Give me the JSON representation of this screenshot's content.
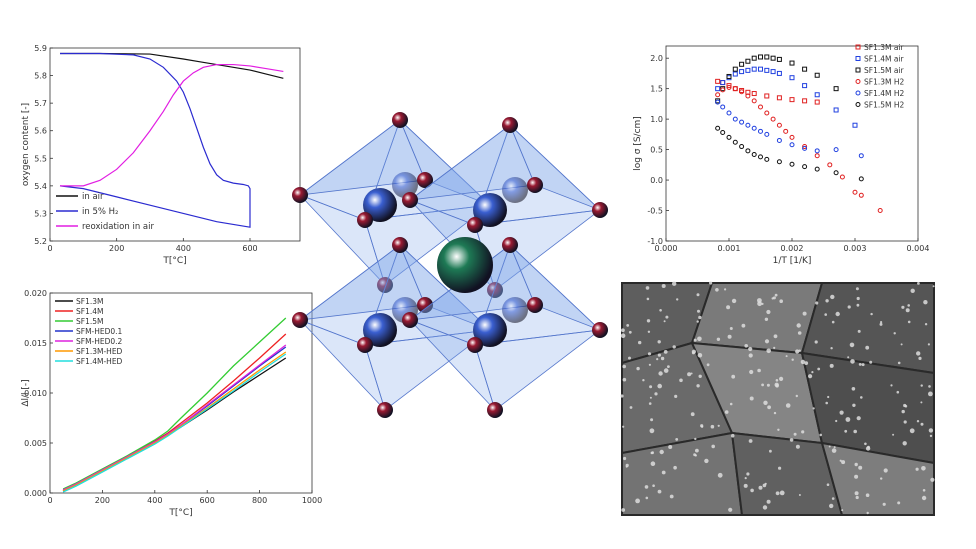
{
  "colors": {
    "axis": "#333333",
    "tick_text": "#333333"
  },
  "panel_oxygen": {
    "chart_data": {
      "type": "line",
      "ylabel": "oxygen content [-]",
      "xlabel": "T[°C]",
      "xlim": [
        0,
        750
      ],
      "ylim": [
        5.2,
        5.9
      ],
      "xticks": [
        0,
        200,
        400,
        600
      ],
      "yticks": [
        5.2,
        5.3,
        5.4,
        5.5,
        5.6,
        5.7,
        5.8,
        5.9
      ],
      "grid": false,
      "legend_position": "bottom-left",
      "series": [
        {
          "name": "in air",
          "color": "#111111",
          "x": [
            30,
            150,
            300,
            400,
            450,
            500,
            550,
            600,
            650,
            700
          ],
          "y": [
            5.88,
            5.88,
            5.878,
            5.86,
            5.85,
            5.84,
            5.83,
            5.82,
            5.805,
            5.79
          ]
        },
        {
          "name": "in 5% H₂",
          "color": "#2b2bd0",
          "x": [
            30,
            150,
            250,
            300,
            340,
            380,
            400,
            420,
            440,
            460,
            480,
            500,
            520,
            550,
            580,
            595,
            600,
            600,
            500,
            400,
            300,
            200,
            100,
            30
          ],
          "y": [
            5.88,
            5.88,
            5.875,
            5.86,
            5.83,
            5.78,
            5.74,
            5.68,
            5.61,
            5.54,
            5.48,
            5.44,
            5.42,
            5.41,
            5.405,
            5.4,
            5.39,
            5.25,
            5.27,
            5.3,
            5.33,
            5.36,
            5.39,
            5.4
          ]
        },
        {
          "name": "reoxidation in air",
          "color": "#e21ee2",
          "x": [
            30,
            100,
            150,
            200,
            250,
            300,
            340,
            370,
            400,
            430,
            460,
            500,
            550,
            600,
            650,
            700
          ],
          "y": [
            5.4,
            5.4,
            5.42,
            5.46,
            5.52,
            5.6,
            5.67,
            5.73,
            5.78,
            5.81,
            5.83,
            5.84,
            5.84,
            5.835,
            5.825,
            5.815
          ]
        }
      ]
    }
  },
  "panel_expansion": {
    "chart_data": {
      "type": "line",
      "ylabel": "Δl/l [-]",
      "xlabel": "T[°C]",
      "xlim": [
        0,
        1000
      ],
      "ylim": [
        0,
        0.02
      ],
      "xticks": [
        0,
        200,
        400,
        600,
        800,
        1000
      ],
      "yticks": [
        "0.000",
        "0.005",
        "0.010",
        "0.015",
        "0.020"
      ],
      "grid": false,
      "legend_position": "top-left",
      "x": [
        50,
        100,
        200,
        300,
        400,
        450,
        500,
        600,
        700,
        800,
        900
      ],
      "series": [
        {
          "name": "SF1.3M",
          "color": "#111111",
          "values": [
            0.0002,
            0.0008,
            0.0022,
            0.0036,
            0.005,
            0.0058,
            0.0066,
            0.0083,
            0.0101,
            0.0118,
            0.0135
          ]
        },
        {
          "name": "SF1.4M",
          "color": "#ee2222",
          "values": [
            0.0003,
            0.0009,
            0.0023,
            0.0037,
            0.0052,
            0.006,
            0.007,
            0.009,
            0.0112,
            0.0135,
            0.0159
          ]
        },
        {
          "name": "SF1.5M",
          "color": "#33cc33",
          "values": [
            0.0004,
            0.001,
            0.0024,
            0.0038,
            0.0053,
            0.0062,
            0.0075,
            0.01,
            0.0127,
            0.0151,
            0.0175
          ]
        },
        {
          "name": "SFM-HED0.1",
          "color": "#2233cc",
          "values": [
            0.0002,
            0.0008,
            0.0022,
            0.0036,
            0.0051,
            0.0059,
            0.0068,
            0.0087,
            0.0107,
            0.0127,
            0.0146
          ]
        },
        {
          "name": "SFM-HED0.2",
          "color": "#dd22dd",
          "values": [
            0.0003,
            0.0009,
            0.0023,
            0.0037,
            0.0051,
            0.0059,
            0.0068,
            0.0088,
            0.0108,
            0.0128,
            0.0148
          ]
        },
        {
          "name": "SF1.3M-HED",
          "color": "#ff9900",
          "values": [
            0.0002,
            0.0008,
            0.0022,
            0.0036,
            0.005,
            0.0058,
            0.0067,
            0.0085,
            0.0104,
            0.0123,
            0.0141
          ]
        },
        {
          "name": "SF1.4M-HED",
          "color": "#22dddd",
          "values": [
            0.0001,
            0.0007,
            0.0021,
            0.0035,
            0.0049,
            0.0057,
            0.0066,
            0.0084,
            0.0102,
            0.0121,
            0.0139
          ]
        }
      ]
    }
  },
  "panel_conductivity": {
    "chart_data": {
      "type": "scatter",
      "ylabel": "log σ [S/cm]",
      "xlabel": "1/T [1/K]",
      "xlim": [
        0,
        0.004
      ],
      "ylim": [
        -1.0,
        2.2
      ],
      "xticks": [
        "0.000",
        "0.001",
        "0.002",
        "0.003",
        "0.004"
      ],
      "yticks": [
        "-1.0",
        "-0.5",
        "0.0",
        "0.5",
        "1.0",
        "1.5",
        "2.0"
      ],
      "grid": false,
      "legend_position": "top-right",
      "series": [
        {
          "name": "SF1.3M air",
          "color": "#e02020",
          "marker": "square",
          "x": [
            0.00082,
            0.0009,
            0.001,
            0.0011,
            0.0012,
            0.0013,
            0.0014,
            0.0016,
            0.0018,
            0.002,
            0.0022,
            0.0024
          ],
          "y": [
            1.62,
            1.6,
            1.55,
            1.5,
            1.47,
            1.44,
            1.42,
            1.38,
            1.35,
            1.32,
            1.3,
            1.28
          ]
        },
        {
          "name": "SF1.4M air",
          "color": "#2040e0",
          "marker": "square",
          "x": [
            0.00082,
            0.0009,
            0.001,
            0.0011,
            0.0012,
            0.0013,
            0.0014,
            0.0015,
            0.0016,
            0.0017,
            0.0018,
            0.002,
            0.0022,
            0.0024,
            0.0027,
            0.003
          ],
          "y": [
            1.5,
            1.6,
            1.68,
            1.74,
            1.78,
            1.8,
            1.82,
            1.82,
            1.8,
            1.78,
            1.75,
            1.68,
            1.55,
            1.4,
            1.15,
            0.9
          ]
        },
        {
          "name": "SF1.5M air",
          "color": "#111111",
          "marker": "square",
          "x": [
            0.00082,
            0.0009,
            0.001,
            0.0011,
            0.0012,
            0.0013,
            0.0014,
            0.0015,
            0.0016,
            0.0017,
            0.0018,
            0.002,
            0.0022,
            0.0024,
            0.0027
          ],
          "y": [
            1.3,
            1.5,
            1.7,
            1.82,
            1.9,
            1.95,
            2.0,
            2.02,
            2.02,
            2.0,
            1.98,
            1.92,
            1.82,
            1.72,
            1.5
          ]
        },
        {
          "name": "SF1.3M H2",
          "color": "#e02020",
          "marker": "circle",
          "x": [
            0.00082,
            0.0009,
            0.001,
            0.0011,
            0.0012,
            0.0013,
            0.0014,
            0.0015,
            0.0016,
            0.0017,
            0.0018,
            0.0019,
            0.002,
            0.0022,
            0.0024,
            0.0026,
            0.0028,
            0.003,
            0.0031,
            0.0034
          ],
          "y": [
            1.4,
            1.48,
            1.52,
            1.5,
            1.45,
            1.38,
            1.3,
            1.2,
            1.1,
            1.0,
            0.9,
            0.8,
            0.7,
            0.55,
            0.4,
            0.25,
            0.05,
            -0.2,
            -0.25,
            -0.5
          ]
        },
        {
          "name": "SF1.4M H2",
          "color": "#2040e0",
          "marker": "circle",
          "x": [
            0.00082,
            0.0009,
            0.001,
            0.0011,
            0.0012,
            0.0013,
            0.0014,
            0.0015,
            0.0016,
            0.0018,
            0.002,
            0.0022,
            0.0024,
            0.0027,
            0.0031
          ],
          "y": [
            1.28,
            1.2,
            1.1,
            1.0,
            0.95,
            0.9,
            0.85,
            0.8,
            0.75,
            0.65,
            0.58,
            0.52,
            0.48,
            0.5,
            0.4
          ]
        },
        {
          "name": "SF1.5M H2",
          "color": "#111111",
          "marker": "circle",
          "x": [
            0.00082,
            0.0009,
            0.001,
            0.0011,
            0.0012,
            0.0013,
            0.0014,
            0.0015,
            0.0016,
            0.0018,
            0.002,
            0.0022,
            0.0024,
            0.0027,
            0.0031
          ],
          "y": [
            0.85,
            0.78,
            0.7,
            0.62,
            0.55,
            0.48,
            0.42,
            0.38,
            0.34,
            0.3,
            0.26,
            0.22,
            0.18,
            0.12,
            0.02
          ]
        }
      ]
    }
  },
  "crystal_structure": {
    "colors": {
      "octahedron_fill": "#7fa6e8",
      "octahedron_edge": "#5577cc",
      "b_site": "#3a5fd0",
      "oxygen": "#9a1a32",
      "a_site": "#1e7a55"
    }
  },
  "micrograph": {
    "colors": {
      "background": "#262626",
      "grain": "#6e6e6e",
      "particle": "#dddddd"
    }
  }
}
